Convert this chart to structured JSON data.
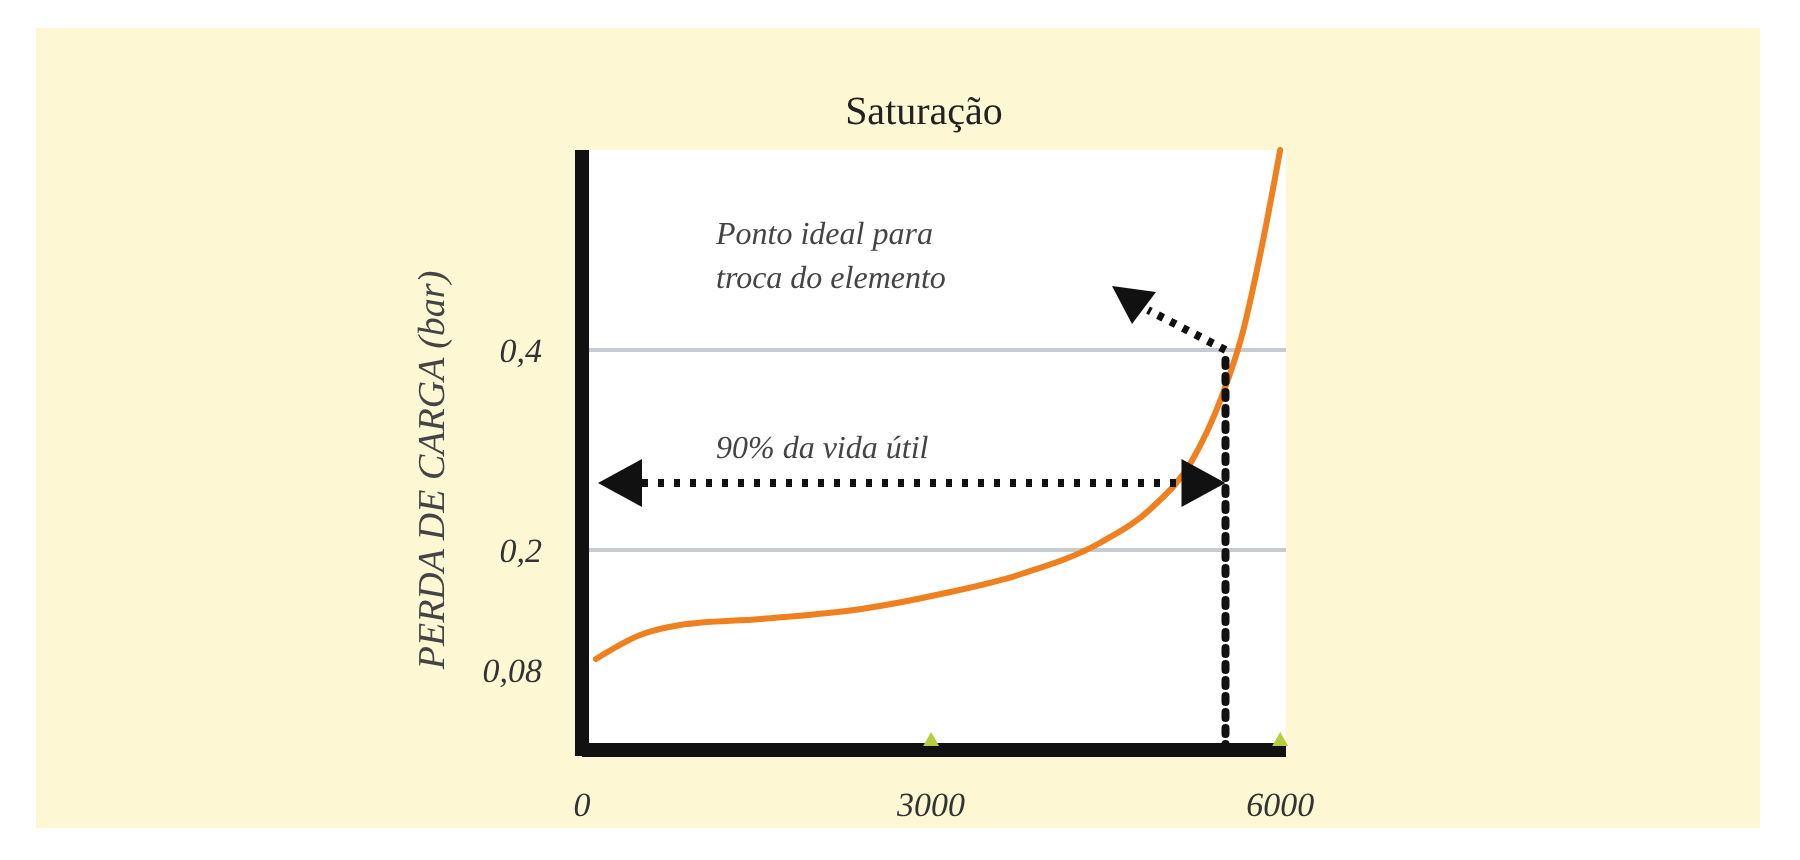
{
  "chart_data": {
    "type": "line",
    "title": "Saturação",
    "ylabel": "PERDA DE CARGA (bar)",
    "x": [
      120,
      500,
      845,
      1535,
      2400,
      3085,
      3775,
      4465,
      4895,
      5240,
      5500,
      5670,
      5845,
      6000
    ],
    "series": [
      {
        "color": "#f07f1e",
        "values": [
          0.091,
          0.115,
          0.125,
          0.131,
          0.141,
          0.156,
          0.176,
          0.208,
          0.242,
          0.289,
          0.354,
          0.414,
          0.505,
          0.6
        ]
      },
      {
        "color": "#111111",
        "x": [
          5530,
          5530
        ],
        "values": [
          0,
          0.4
        ],
        "line_style": "dotted"
      }
    ],
    "xlim": [
      0,
      6050
    ],
    "ylim": [
      0,
      0.6
    ],
    "xticks": [
      0,
      3000,
      6000
    ],
    "yticks": [
      {
        "value": 0.08,
        "label": "0,08"
      },
      {
        "value": 0.2,
        "label": "0,2"
      },
      {
        "value": 0.4,
        "label": "0,4"
      }
    ],
    "ref_lines": [
      {
        "axis": "y",
        "value": 0.2,
        "color": "#c5cad3"
      },
      {
        "axis": "y",
        "value": 0.4,
        "color": "#c5cad3"
      }
    ],
    "annotations": [
      "Ponto ideal para\ntroca do elemento",
      "90% da vida útil"
    ],
    "grid": false,
    "marker": "none",
    "line_style": "solid"
  }
}
